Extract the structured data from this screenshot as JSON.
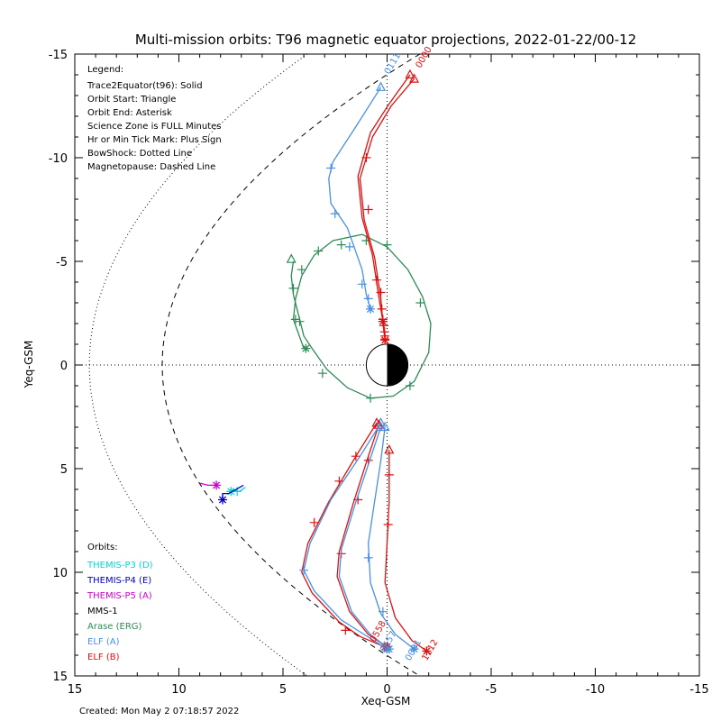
{
  "chart_data": {
    "type": "line",
    "title": "Multi-mission orbits: T96 magnetic equator projections, 2022-01-22/00-12",
    "xlabel": "Xeq-GSM",
    "ylabel": "Yeq-GSM",
    "xlim": [
      15,
      -15
    ],
    "ylim": [
      -15,
      15
    ],
    "x_ticks": [
      "15",
      "10",
      "5",
      "0",
      "-5",
      "-10",
      "-15"
    ],
    "y_ticks": [
      "-15",
      "-10",
      "-5",
      "0",
      "5",
      "10",
      "15"
    ],
    "created": "Created: Mon May  2 07:18:57 2022",
    "legend": {
      "header": "Legend:",
      "lines": [
        "Trace2Equator(t96): Solid",
        "Orbit Start: Triangle",
        "Orbit End: Asterisk",
        "Science Zone is FULL Minutes",
        "Hr or Min Tick Mark: Plus Sign",
        "BowShock: Dotted Line",
        "Magnetopause: Dashed Line"
      ]
    },
    "orbits": {
      "header": "Orbits:",
      "items": [
        {
          "name": "THEMIS-P3 (D)",
          "color": "#00d8d8"
        },
        {
          "name": "THEMIS-P4 (E)",
          "color": "#0000c8"
        },
        {
          "name": "THEMIS-P5 (A)",
          "color": "#d000d0"
        },
        {
          "name": "MMS-1",
          "color": "#000000"
        },
        {
          "name": "Arase (ERG)",
          "color": "#2e8b57"
        },
        {
          "name": "ELF (A)",
          "color": "#4a90e2"
        },
        {
          "name": "ELF (B)",
          "color": "#e01010"
        }
      ]
    },
    "time_labels": [
      {
        "text": "0000",
        "x": -1.6,
        "y": -14.3,
        "color": "#e01010"
      },
      {
        "text": "0111",
        "x": -0.1,
        "y": -14.0,
        "color": "#4a90e2"
      },
      {
        "text": "0558",
        "x": 0.6,
        "y": 13.4,
        "color": "#e01010"
      },
      {
        "text": "0557",
        "x": 0.1,
        "y": 13.9,
        "color": "#4a90e2"
      },
      {
        "text": "0001",
        "x": -1.1,
        "y": 14.3,
        "color": "#4a90e2"
      },
      {
        "text": "1112",
        "x": -1.9,
        "y": 14.3,
        "color": "#e01010"
      }
    ],
    "series": [
      {
        "name": "Arase (ERG)",
        "color": "#2e8b57",
        "points": [
          [
            4.5,
            -5.0
          ],
          [
            4.6,
            -4.3
          ],
          [
            4.5,
            -3.4
          ],
          [
            4.3,
            -2.6
          ],
          [
            4.0,
            -1.4
          ],
          [
            3.6,
            -0.8
          ],
          [
            2.9,
            0.2
          ],
          [
            1.9,
            1.1
          ],
          [
            0.8,
            1.6
          ],
          [
            -0.3,
            1.5
          ],
          [
            -1.3,
            0.8
          ],
          [
            -2.0,
            -0.6
          ],
          [
            -2.1,
            -2.0
          ],
          [
            -1.7,
            -3.3
          ],
          [
            -1.0,
            -4.6
          ],
          [
            0.0,
            -5.7
          ],
          [
            1.2,
            -6.3
          ],
          [
            2.6,
            -6.0
          ],
          [
            3.5,
            -5.3
          ],
          [
            4.1,
            -4.3
          ],
          [
            4.4,
            -3.2
          ],
          [
            4.5,
            -2.2
          ],
          [
            4.0,
            -0.8
          ]
        ],
        "ticks": [
          [
            -1.6,
            -3.0
          ],
          [
            0.0,
            -5.8
          ],
          [
            1.0,
            -6.0
          ],
          [
            2.2,
            -5.8
          ],
          [
            3.3,
            -5.5
          ],
          [
            4.1,
            -4.6
          ],
          [
            4.5,
            -3.7
          ],
          [
            4.4,
            -2.2
          ],
          [
            4.2,
            -2.1
          ],
          [
            3.1,
            0.4
          ],
          [
            0.8,
            1.6
          ],
          [
            -1.1,
            1.0
          ]
        ],
        "start": [
          4.6,
          -5.1
        ],
        "end": [
          3.9,
          -0.8
        ]
      },
      {
        "name": "ELF (A) north",
        "color": "#4a90e2",
        "points": [
          [
            0.3,
            -13.4
          ],
          [
            1.5,
            -11.5
          ],
          [
            2.6,
            -9.8
          ],
          [
            2.8,
            -9.0
          ],
          [
            2.7,
            -7.8
          ],
          [
            1.9,
            -6.6
          ],
          [
            1.2,
            -4.6
          ],
          [
            1.0,
            -3.4
          ],
          [
            0.8,
            -2.7
          ]
        ],
        "ticks": [
          [
            2.7,
            -9.5
          ],
          [
            2.5,
            -7.3
          ],
          [
            1.8,
            -5.7
          ],
          [
            1.2,
            -3.9
          ],
          [
            0.9,
            -3.2
          ]
        ],
        "start": [
          0.3,
          -13.4
        ],
        "end": [
          0.8,
          -2.7
        ]
      },
      {
        "name": "ELF (B) north",
        "color": "#e01010",
        "points": [
          [
            -1.3,
            -13.8
          ],
          [
            -0.2,
            -12.5
          ],
          [
            0.7,
            -11.0
          ],
          [
            1.3,
            -9.0
          ],
          [
            1.1,
            -7.0
          ],
          [
            0.6,
            -5.2
          ],
          [
            0.3,
            -3.2
          ],
          [
            0.2,
            -2.0
          ],
          [
            0.1,
            -1.2
          ]
        ],
        "ticks": [
          [
            1.0,
            -10.0
          ],
          [
            0.9,
            -7.5
          ],
          [
            0.5,
            -4.1
          ],
          [
            0.3,
            -3.5
          ],
          [
            0.25,
            -2.7
          ],
          [
            0.2,
            -2.2
          ],
          [
            0.15,
            -1.9
          ],
          [
            0.12,
            -1.6
          ],
          [
            0.1,
            -1.4
          ],
          [
            0.1,
            -1.25
          ]
        ],
        "start": [
          -1.3,
          -13.8
        ],
        "end": [
          0.1,
          -1.2
        ]
      },
      {
        "name": "ELF (B) north (b)",
        "color": "#e01010",
        "points": [
          [
            -1.1,
            -14.0
          ],
          [
            -0.1,
            -12.6
          ],
          [
            0.8,
            -11.2
          ],
          [
            1.4,
            -9.1
          ],
          [
            1.2,
            -7.1
          ],
          [
            0.7,
            -5.3
          ],
          [
            0.4,
            -3.3
          ],
          [
            0.2,
            -2.1
          ]
        ],
        "ticks": [],
        "start": [
          -1.1,
          -14.0
        ],
        "end": [
          0.2,
          -2.1
        ]
      },
      {
        "name": "ELF (B) south outer",
        "color": "#e01010",
        "points": [
          [
            0.5,
            2.8
          ],
          [
            1.5,
            4.4
          ],
          [
            2.8,
            6.6
          ],
          [
            3.8,
            8.6
          ],
          [
            4.1,
            10.0
          ],
          [
            3.6,
            11.0
          ],
          [
            2.3,
            12.4
          ],
          [
            1.3,
            13.1
          ],
          [
            0.1,
            13.6
          ]
        ],
        "ticks": [
          [
            1.5,
            4.4
          ],
          [
            2.3,
            5.6
          ],
          [
            3.5,
            7.6
          ],
          [
            2.0,
            12.8
          ]
        ],
        "start": [
          0.5,
          2.8
        ],
        "end": [
          0.1,
          13.6
        ]
      },
      {
        "name": "ELF (A) south outer",
        "color": "#4a90e2",
        "points": [
          [
            0.3,
            2.8
          ],
          [
            1.3,
            4.4
          ],
          [
            2.7,
            6.5
          ],
          [
            3.7,
            8.6
          ],
          [
            4.0,
            9.9
          ],
          [
            3.5,
            10.9
          ],
          [
            2.2,
            12.3
          ],
          [
            1.1,
            13.0
          ],
          [
            0.0,
            13.7
          ]
        ],
        "ticks": [
          [
            4.0,
            9.9
          ]
        ],
        "start": [
          0.3,
          2.8
        ],
        "end": [
          0.0,
          13.7
        ]
      },
      {
        "name": "ELF (B) south inner",
        "color": "#e01010",
        "points": [
          [
            0.4,
            2.9
          ],
          [
            0.9,
            4.4
          ],
          [
            1.6,
            6.6
          ],
          [
            2.3,
            9.0
          ],
          [
            2.4,
            10.2
          ],
          [
            1.8,
            11.9
          ],
          [
            0.9,
            13.0
          ],
          [
            0.0,
            13.6
          ]
        ],
        "ticks": [
          [
            0.9,
            4.6
          ],
          [
            1.4,
            6.5
          ],
          [
            2.2,
            9.1
          ]
        ],
        "start": [
          0.4,
          2.9
        ],
        "end": [
          0.0,
          13.6
        ]
      },
      {
        "name": "ELF (A) south inner",
        "color": "#4a90e2",
        "points": [
          [
            0.3,
            3.0
          ],
          [
            0.8,
            4.5
          ],
          [
            1.5,
            6.6
          ],
          [
            2.2,
            8.9
          ],
          [
            2.3,
            10.2
          ],
          [
            1.7,
            11.9
          ],
          [
            0.8,
            13.0
          ],
          [
            -0.1,
            13.7
          ]
        ],
        "ticks": [],
        "start": [
          0.3,
          3.0
        ],
        "end": [
          -0.1,
          13.7
        ]
      },
      {
        "name": "ELF (A) south 2",
        "color": "#4a90e2",
        "points": [
          [
            0.1,
            3.0
          ],
          [
            0.3,
            4.6
          ],
          [
            0.6,
            6.6
          ],
          [
            0.9,
            8.6
          ],
          [
            0.8,
            10.5
          ],
          [
            0.3,
            12.0
          ],
          [
            -0.4,
            13.0
          ],
          [
            -1.3,
            13.7
          ]
        ],
        "ticks": [
          [
            0.9,
            9.3
          ],
          [
            0.2,
            11.9
          ]
        ],
        "start": [
          0.1,
          3.0
        ],
        "end": [
          -1.3,
          13.7
        ]
      },
      {
        "name": "ELF (B) south 2",
        "color": "#e01010",
        "points": [
          [
            -0.1,
            4.1
          ],
          [
            -0.1,
            5.2
          ],
          [
            -0.1,
            6.6
          ],
          [
            0.0,
            8.6
          ],
          [
            0.1,
            10.5
          ],
          [
            -0.4,
            12.2
          ],
          [
            -1.2,
            13.3
          ],
          [
            -1.9,
            13.8
          ]
        ],
        "ticks": [
          [
            -0.1,
            5.3
          ],
          [
            -0.05,
            7.7
          ]
        ],
        "start": [
          -0.1,
          4.1
        ],
        "end": [
          -1.9,
          13.8
        ]
      },
      {
        "name": "THEMIS-P5 (A)",
        "color": "#d000d0",
        "points": [
          [
            9.0,
            5.7
          ],
          [
            8.6,
            5.8
          ],
          [
            8.2,
            5.8
          ]
        ],
        "ticks": [],
        "start": null,
        "end": [
          8.2,
          5.8
        ]
      },
      {
        "name": "THEMIS-P3 (D)",
        "color": "#00d8d8",
        "points": [
          [
            7.5,
            6.0
          ],
          [
            7.1,
            6.1
          ],
          [
            6.8,
            5.9
          ]
        ],
        "ticks": [
          [
            7.2,
            6.1
          ]
        ],
        "start": null,
        "end": [
          7.5,
          6.1
        ]
      },
      {
        "name": "THEMIS-P4 (E)",
        "color": "#0000c8",
        "points": [
          [
            7.9,
            6.5
          ],
          [
            7.9,
            6.2
          ],
          [
            7.6,
            6.2
          ],
          [
            6.9,
            5.8
          ]
        ],
        "ticks": [],
        "start": null,
        "end": [
          7.9,
          6.5
        ]
      }
    ]
  }
}
